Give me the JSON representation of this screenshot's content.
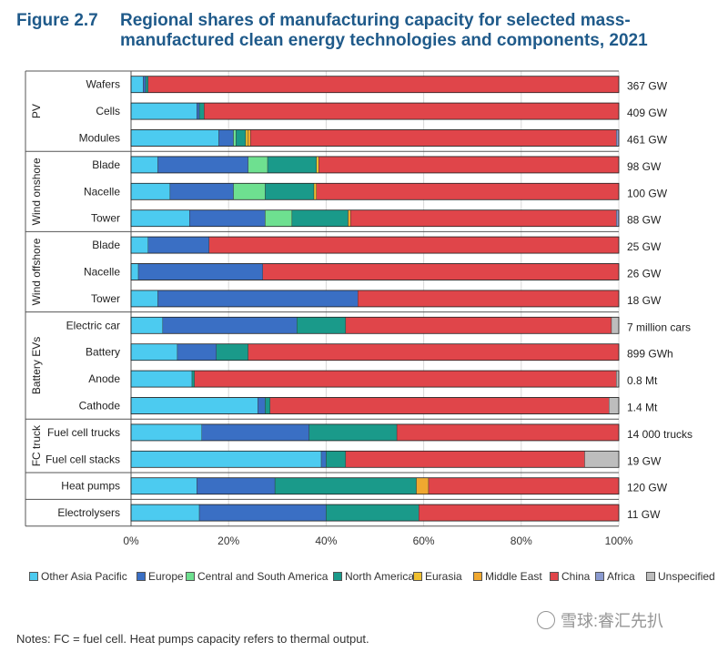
{
  "figure_label": "Figure 2.7",
  "title": "Regional shares of manufacturing capacity for selected mass-manufactured clean energy technologies and components, 2021",
  "notes": "Notes: FC = fuel cell. Heat pumps capacity refers to thermal output.",
  "watermark": "雪球:睿汇先扒",
  "chart_data": {
    "type": "bar",
    "orientation": "horizontal",
    "stacked": true,
    "normalized": true,
    "xlim": [
      0,
      100
    ],
    "x_ticks": [
      "0%",
      "20%",
      "40%",
      "60%",
      "80%",
      "100%"
    ],
    "groups": [
      {
        "name": "PV",
        "rows": [
          0,
          1,
          2
        ]
      },
      {
        "name": "Wind onshore",
        "rows": [
          3,
          4,
          5
        ]
      },
      {
        "name": "Wind offshore",
        "rows": [
          6,
          7,
          8
        ]
      },
      {
        "name": "Battery EVs",
        "rows": [
          9,
          10,
          11,
          12
        ]
      },
      {
        "name": "FC truck",
        "rows": [
          13,
          14
        ]
      },
      {
        "name": "",
        "rows": [
          15
        ]
      },
      {
        "name": "",
        "rows": [
          16
        ]
      }
    ],
    "categories": [
      "Wafers",
      "Cells",
      "Modules",
      "Blade",
      "Nacelle",
      "Tower",
      "Blade",
      "Nacelle",
      "Tower",
      "Electric car",
      "Battery",
      "Anode",
      "Cathode",
      "Fuel cell trucks",
      "Fuel cell stacks",
      "Heat pumps",
      "Electrolysers"
    ],
    "totals": [
      "367 GW",
      "409 GW",
      "461 GW",
      "98 GW",
      "100 GW",
      "88 GW",
      "25 GW",
      "26 GW",
      "18 GW",
      "7 million cars",
      "899 GWh",
      "0.8 Mt",
      "1.4 Mt",
      "14 000 trucks",
      "19 GW",
      "120 GW",
      "11 GW"
    ],
    "series": [
      {
        "name": "Other Asia Pacific",
        "color": "#4ccbf0",
        "values": [
          2.5,
          13.5,
          18,
          5.5,
          8,
          12,
          3.5,
          1.5,
          5.5,
          6.5,
          9.5,
          12.5,
          26,
          14.5,
          39,
          13.5,
          14
        ]
      },
      {
        "name": "Europe",
        "color": "#3a6fc4",
        "values": [
          0.5,
          0.5,
          3,
          18.5,
          13,
          15.5,
          12.5,
          25.5,
          41,
          27.5,
          8,
          0,
          1.5,
          22,
          1,
          16,
          26
        ]
      },
      {
        "name": "Central and South America",
        "color": "#6ee090",
        "values": [
          0,
          0,
          0.5,
          4,
          6.5,
          5.5,
          0,
          0,
          0,
          0,
          0,
          0,
          0,
          0,
          0,
          0,
          0
        ]
      },
      {
        "name": "North America",
        "color": "#1a9a8a",
        "values": [
          0.5,
          1,
          2,
          10,
          10,
          11.5,
          0,
          0,
          0,
          10,
          6.5,
          0.5,
          1,
          18,
          4,
          29,
          19
        ]
      },
      {
        "name": "Eurasia",
        "color": "#f0c030",
        "values": [
          0,
          0,
          0.5,
          0.5,
          0.5,
          0,
          0,
          0,
          0,
          0,
          0,
          0,
          0,
          0,
          0,
          0,
          0
        ]
      },
      {
        "name": "Middle East",
        "color": "#f0a830",
        "values": [
          0,
          0,
          0.5,
          0,
          0,
          0.5,
          0,
          0,
          0,
          0,
          0,
          0,
          0,
          0,
          0,
          2.5,
          0
        ]
      },
      {
        "name": "China",
        "color": "#e0454a",
        "values": [
          96.5,
          85,
          75,
          61.5,
          62,
          54.5,
          84,
          73,
          53.5,
          54.5,
          76,
          86.5,
          69.5,
          45.5,
          49,
          39,
          41
        ]
      },
      {
        "name": "Africa",
        "color": "#8a9ad0",
        "values": [
          0,
          0,
          0.5,
          0,
          0,
          0.5,
          0,
          0,
          0,
          0,
          0,
          0,
          0,
          0,
          0,
          0,
          0
        ]
      },
      {
        "name": "Unspecified",
        "color": "#bdbdbd",
        "values": [
          0,
          0,
          0,
          0,
          0,
          0,
          0,
          0,
          0,
          1.5,
          0,
          0.5,
          2,
          0,
          7,
          0,
          0
        ]
      }
    ]
  }
}
